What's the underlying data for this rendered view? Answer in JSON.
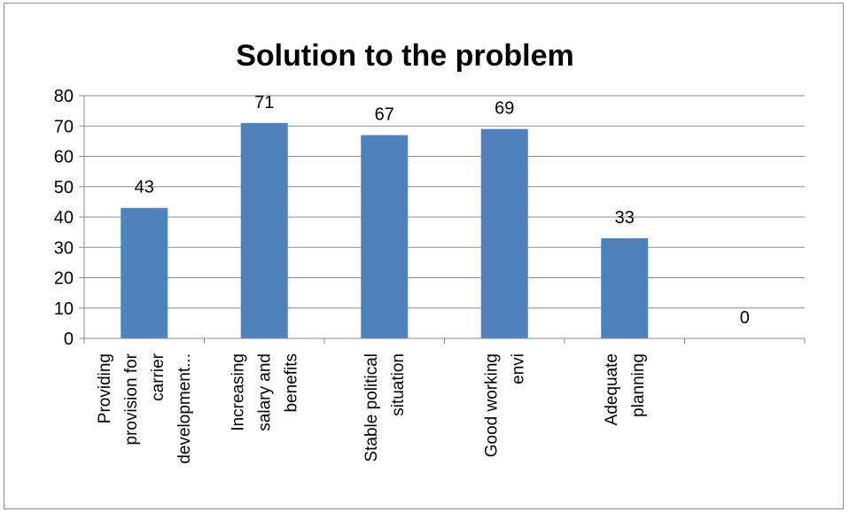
{
  "chart_data": {
    "type": "bar",
    "title": "Solution to the problem",
    "categories": [
      [
        "Providing",
        "provision for",
        "carrier",
        "development..."
      ],
      [
        "Increasing",
        "salary and",
        "benefits"
      ],
      [
        "Stable political",
        "situation"
      ],
      [
        "Good working",
        "envi"
      ],
      [
        "Adequate",
        "planning"
      ],
      [
        ""
      ]
    ],
    "values": [
      43,
      71,
      67,
      69,
      33,
      0
    ],
    "ylim": [
      0,
      80
    ],
    "ytick_step": 10,
    "grid": true,
    "legend": "none",
    "xlabel": "",
    "ylabel": "",
    "bar_color": "#4f81bd",
    "grid_color": "#8c8c8c"
  }
}
